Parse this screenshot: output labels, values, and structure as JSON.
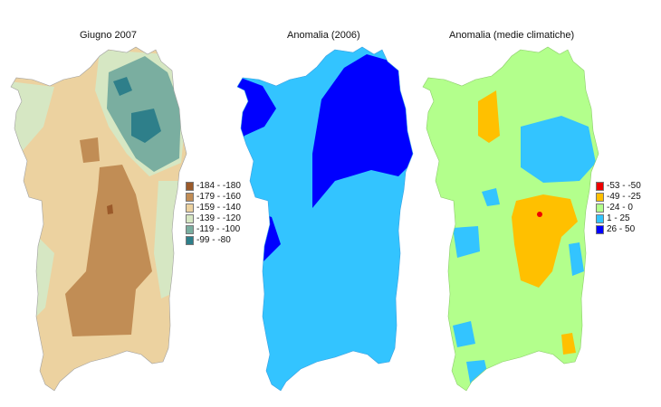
{
  "maps": [
    {
      "title": "Giugno 2007"
    },
    {
      "title": "Anomalia (2006)"
    },
    {
      "title": "Anomalia (medie climatiche)"
    }
  ],
  "legend_left": {
    "items": [
      {
        "label": "-184 - -180",
        "color": "#9b5a2a"
      },
      {
        "label": "-179 - -160",
        "color": "#c18d55"
      },
      {
        "label": "-159 - -140",
        "color": "#ecd2a0"
      },
      {
        "label": "-139 - -120",
        "color": "#d6e7c3"
      },
      {
        "label": "-119 - -100",
        "color": "#7aaea0"
      },
      {
        "label": "-99 - -80",
        "color": "#2e7f8a"
      }
    ]
  },
  "legend_right": {
    "items": [
      {
        "label": "-53 - -50",
        "color": "#ee0000"
      },
      {
        "label": "-49 - -25",
        "color": "#ffc000"
      },
      {
        "label": "-24 - 0",
        "color": "#b3ff8c"
      },
      {
        "label": "1 - 25",
        "color": "#33c4ff"
      },
      {
        "label": "26 - 50",
        "color": "#0000ff"
      }
    ]
  },
  "colors": {
    "m1_base": "#ecd2a0",
    "m1_coast": "#d6e7c3",
    "m1_brown": "#c18d55",
    "m1_darkbrown": "#9b5a2a",
    "m1_teal": "#7aaea0",
    "m1_darkteal": "#2e7f8a",
    "m2_light": "#33c4ff",
    "m2_dark": "#0000ff",
    "m3_green": "#b3ff8c",
    "m3_blue": "#33c4ff",
    "m3_orange": "#ffc000",
    "m3_red": "#ee0000"
  }
}
